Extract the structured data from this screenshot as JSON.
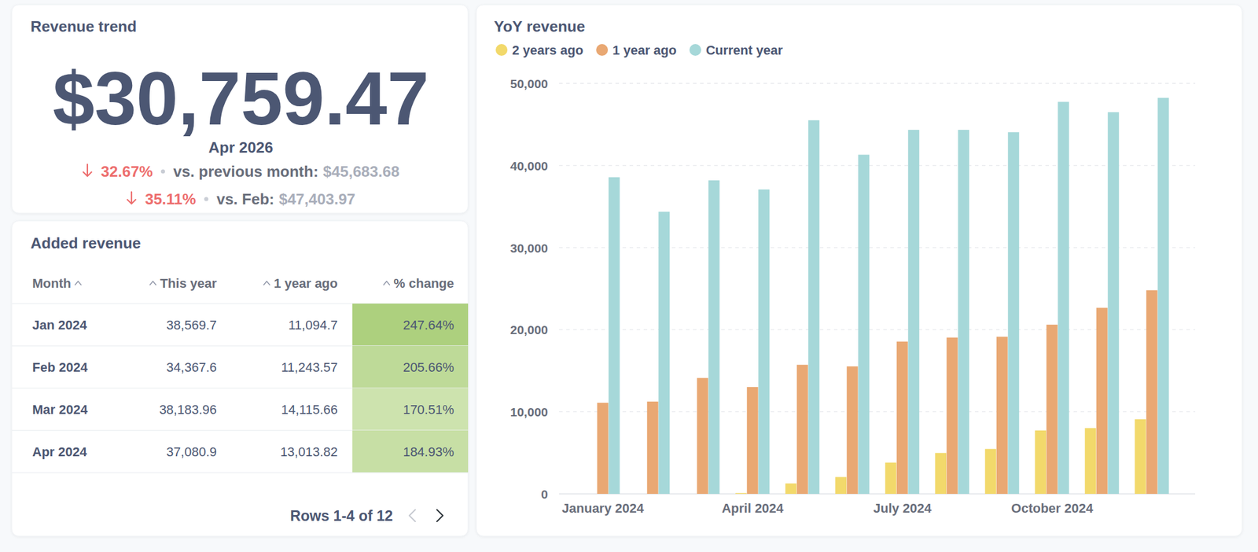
{
  "kpi": {
    "title": "Revenue trend",
    "value": "$30,759.47",
    "period": "Apr 2026",
    "comparisons": [
      {
        "change": "32.67%",
        "label": "vs. previous month:",
        "value": "$45,683.68"
      },
      {
        "change": "35.11%",
        "label": "vs. Feb:",
        "value": "$47,403.97"
      }
    ]
  },
  "table": {
    "title": "Added revenue",
    "columns": [
      "Month",
      "This year",
      "1 year ago",
      "% change"
    ],
    "rows": [
      [
        "Jan 2024",
        "38,569.7",
        "11,094.7",
        "247.64%"
      ],
      [
        "Feb 2024",
        "34,367.6",
        "11,243.57",
        "205.66%"
      ],
      [
        "Mar 2024",
        "38,183.96",
        "14,115.66",
        "170.51%"
      ],
      [
        "Apr 2024",
        "37,080.9",
        "13,013.82",
        "184.93%"
      ]
    ],
    "pagination": "Rows 1-4 of 12"
  },
  "chart_data": {
    "type": "bar",
    "title": "YoY revenue",
    "categories": [
      "January 2024",
      null,
      null,
      "April 2024",
      null,
      null,
      "July 2024",
      null,
      null,
      "October 2024",
      null,
      null
    ],
    "series": [
      {
        "name": "2 years ago",
        "color": "#f2d96b",
        "values": [
          null,
          null,
          null,
          100,
          1270,
          2050,
          3810,
          4980,
          5470,
          7720,
          8010,
          9080
        ]
      },
      {
        "name": "1 year ago",
        "color": "#e9a873",
        "values": [
          11094.7,
          11243.57,
          14115.66,
          13013.82,
          15720,
          15530,
          18550,
          19040,
          19140,
          20610,
          22660,
          24800
        ]
      },
      {
        "name": "Current year",
        "color": "#a6d8d9",
        "values": [
          38569.7,
          34367.6,
          38183.96,
          37080.9,
          45510,
          41310,
          44340,
          44340,
          44050,
          47750,
          46490,
          48240
        ]
      }
    ],
    "ylim": [
      0,
      50000
    ],
    "yticks": [
      0,
      {
        "value": 10000,
        "label": "10,000"
      },
      {
        "value": 20000,
        "label": "20,000"
      },
      {
        "value": 30000,
        "label": "30,000"
      },
      {
        "value": 40000,
        "label": "40,000"
      },
      {
        "value": 50000,
        "label": "50,000"
      }
    ],
    "grid": true,
    "legend": "top-left"
  }
}
